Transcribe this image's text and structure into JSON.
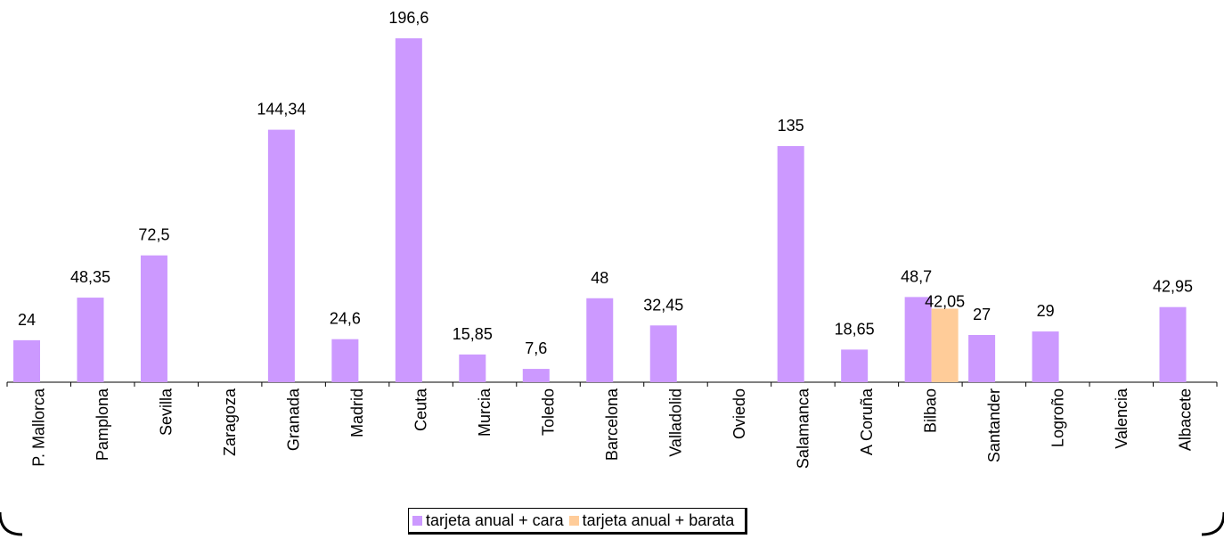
{
  "chart_data": {
    "type": "bar",
    "categories": [
      "P. Mallorca",
      "Pamplona",
      "Sevilla",
      "Zaragoza",
      "Granada",
      "Madrid",
      "Ceuta",
      "Murcia",
      "Toledo",
      "Barcelona",
      "Valladolid",
      "Oviedo",
      "Salamanca",
      "A Coruña",
      "Bilbao",
      "Santander",
      "Logroño",
      "Valencia",
      "Albacete"
    ],
    "series": [
      {
        "name": "tarjeta anual + cara",
        "color": "#cc99ff",
        "values": [
          24,
          48.35,
          72.5,
          null,
          144.34,
          24.6,
          196.6,
          15.85,
          7.6,
          48,
          32.45,
          null,
          135,
          18.65,
          48.7,
          27,
          29,
          null,
          42.95
        ],
        "labels": [
          "24",
          "48,35",
          "72,5",
          "",
          "144,34",
          "24,6",
          "196,6",
          "15,85",
          "7,6",
          "48",
          "32,45",
          "",
          "135",
          "18,65",
          "48,7",
          "27",
          "29",
          "",
          "42,95"
        ]
      },
      {
        "name": "tarjeta anual + barata",
        "color": "#ffcc99",
        "values": [
          null,
          null,
          null,
          null,
          null,
          null,
          null,
          null,
          null,
          null,
          null,
          null,
          null,
          null,
          42.05,
          null,
          null,
          null,
          null
        ],
        "labels": [
          "",
          "",
          "",
          "",
          "",
          "",
          "",
          "",
          "",
          "",
          "",
          "",
          "",
          "",
          "42,05",
          "",
          "",
          "",
          ""
        ]
      }
    ],
    "ylim": [
      0,
      196.6
    ],
    "grid": false,
    "legend_position": "bottom"
  }
}
